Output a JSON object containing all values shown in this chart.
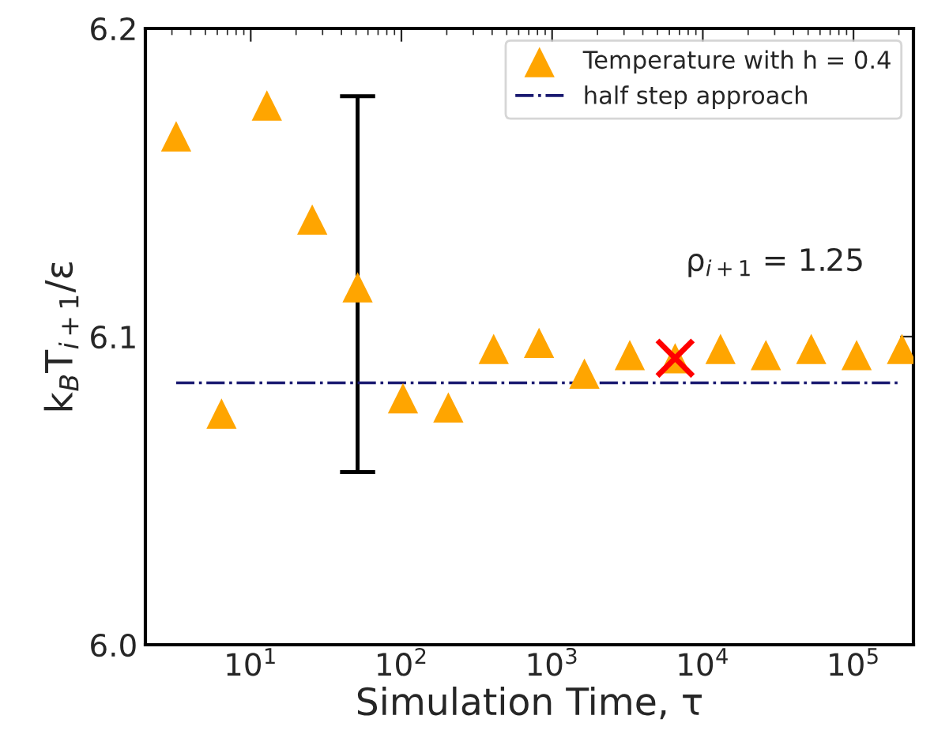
{
  "chart_data": {
    "type": "scatter",
    "xlabel": "Simulation Time, τ",
    "ylabel": "k$_{B}$T$_{i+1}$/ε",
    "log": "x",
    "xlim": [
      2,
      250000
    ],
    "ylim": [
      6.0,
      6.2
    ],
    "xticks": [
      {
        "value": 10,
        "label": "10$^{1}$"
      },
      {
        "value": 100,
        "label": "10$^{2}$"
      },
      {
        "value": 1000,
        "label": "10$^{3}$"
      },
      {
        "value": 10000,
        "label": "10$^{4}$"
      },
      {
        "value": 100000,
        "label": "10$^{5}$"
      }
    ],
    "yticks": [
      {
        "value": 6.0,
        "label": "6.0"
      },
      6.1,
      6.2
    ],
    "grid": false,
    "legend": "top right",
    "annotations": [
      "ρ$_{i+1}$ = 1.25"
    ],
    "series": [
      {
        "name": "Temperature with h = 0.4",
        "marker": "triangle",
        "color": "#ffa500",
        "x": [
          3.2,
          6.4,
          12.8,
          25.6,
          51.2,
          102.4,
          204.8,
          409.6,
          819.2,
          1638.4,
          3276.8,
          6553.6,
          13107,
          26214,
          52429,
          104858,
          209715
        ],
        "values": [
          6.165,
          6.075,
          6.175,
          6.138,
          6.116,
          6.08,
          6.077,
          6.096,
          6.098,
          6.088,
          6.094,
          6.093,
          6.096,
          6.094,
          6.096,
          6.094,
          6.096
        ],
        "errors": [
          null,
          null,
          null,
          null,
          [
            6.056,
            6.178
          ],
          null,
          null,
          null,
          null,
          null,
          null,
          null,
          null,
          null,
          null,
          null,
          null
        ]
      },
      {
        "marker": "cross",
        "color": "#ff0000",
        "x": [
          6553.6
        ],
        "values": [
          6.093
        ]
      },
      {
        "name": "half step approach",
        "type": "line",
        "line_style": "dashdot",
        "color": "#191970",
        "x": [
          3.2,
          209715
        ],
        "values": [
          6.085,
          6.085
        ]
      }
    ]
  }
}
